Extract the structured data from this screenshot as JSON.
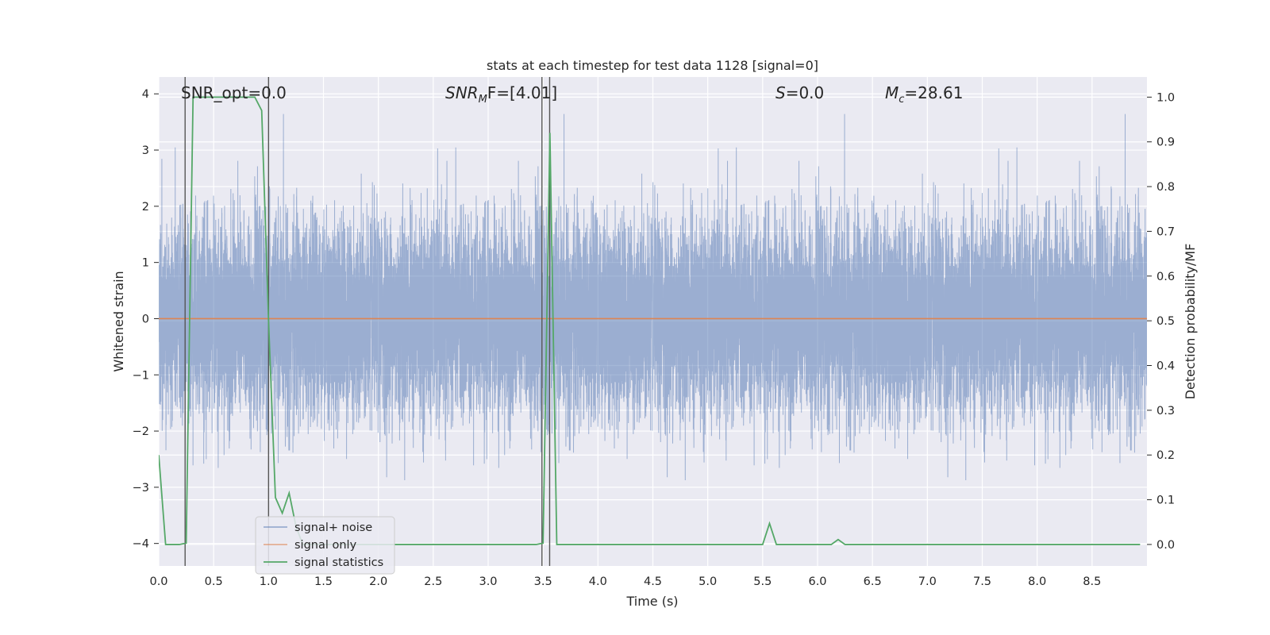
{
  "chart_data": {
    "type": "line",
    "title": "stats at each timestep for test data 1128 [signal=0]",
    "xlabel": "Time (s)",
    "ylabel": "Whitened strain",
    "ylabel_right": "Detection probability/MF",
    "xlim": [
      0,
      9.0
    ],
    "ylim": [
      -4.4,
      4.3
    ],
    "ylim_right": [
      -0.048,
      1.045
    ],
    "x_ticks": [
      0.0,
      0.5,
      1.0,
      1.5,
      2.0,
      2.5,
      3.0,
      3.5,
      4.0,
      4.5,
      5.0,
      5.5,
      6.0,
      6.5,
      7.0,
      7.5,
      8.0,
      8.5
    ],
    "x_tick_labels": [
      "0.0",
      "0.5",
      "1.0",
      "1.5",
      "2.0",
      "2.5",
      "3.0",
      "3.5",
      "4.0",
      "4.5",
      "5.0",
      "5.5",
      "6.0",
      "6.5",
      "7.0",
      "7.5",
      "8.0",
      "8.5"
    ],
    "y_ticks": [
      -4,
      -3,
      -2,
      -1,
      0,
      1,
      2,
      3,
      4
    ],
    "y_tick_labels": [
      "−4",
      "−3",
      "−2",
      "−1",
      "0",
      "1",
      "2",
      "3",
      "4"
    ],
    "y_right_ticks": [
      0.0,
      0.1,
      0.2,
      0.3,
      0.4,
      0.5,
      0.6,
      0.7,
      0.8,
      0.9,
      1.0
    ],
    "y_right_tick_labels": [
      "0.0",
      "0.1",
      "0.2",
      "0.3",
      "0.4",
      "0.5",
      "0.6",
      "0.7",
      "0.8",
      "0.9",
      "1.0"
    ],
    "grid": true,
    "legend_position": "lower-left",
    "annotations": {
      "snr_opt": "SNR_opt=0.0",
      "snr_mf_main": "SNR",
      "snr_mf_sub": "M",
      "snr_mf_rest": "F=[4.01]",
      "s_main": "S",
      "s_rest": "=0.0",
      "mc_main": "M",
      "mc_sub": "c",
      "mc_rest": "=28.61"
    },
    "series": [
      {
        "name": "signal+ noise",
        "color": "#4c72b0",
        "kind": "noise",
        "sample_rate": 2048,
        "amplitude_sigma": 0.85
      },
      {
        "name": "signal only",
        "color": "#dd8452",
        "x": [
          0.0,
          9.0
        ],
        "y": [
          0.0,
          0.0
        ]
      },
      {
        "name": "signal statistics",
        "color": "#55a868",
        "axis": "right",
        "x": [
          0.0,
          0.0625,
          0.125,
          0.1875,
          0.25,
          0.3125,
          0.375,
          0.4375,
          0.5,
          0.5625,
          0.625,
          0.6875,
          0.75,
          0.8125,
          0.875,
          0.9375,
          1.0,
          1.0625,
          1.125,
          1.1875,
          1.25,
          1.3125,
          1.375,
          1.4375,
          1.5,
          1.5625,
          1.625,
          1.6875,
          1.75,
          1.8125,
          1.875,
          1.9375,
          2.0,
          2.0625,
          2.125,
          2.1875,
          2.25,
          2.3125,
          2.375,
          2.4375,
          2.5,
          2.5625,
          2.625,
          2.6875,
          2.75,
          2.8125,
          2.875,
          2.9375,
          3.0,
          3.0625,
          3.125,
          3.1875,
          3.25,
          3.3125,
          3.375,
          3.4375,
          3.5,
          3.5625,
          3.625,
          3.6875,
          3.75,
          3.8125,
          3.875,
          3.9375,
          4.0,
          4.0625,
          4.125,
          4.1875,
          4.25,
          4.3125,
          4.375,
          4.4375,
          4.5,
          4.5625,
          4.625,
          4.6875,
          4.75,
          4.8125,
          4.875,
          4.9375,
          5.0,
          5.0625,
          5.125,
          5.1875,
          5.25,
          5.3125,
          5.375,
          5.4375,
          5.5,
          5.5625,
          5.625,
          5.6875,
          5.75,
          5.8125,
          5.875,
          5.9375,
          6.0,
          6.0625,
          6.125,
          6.1875,
          6.25,
          6.3125,
          6.375,
          6.4375,
          6.5,
          6.5625,
          6.625,
          6.6875,
          6.75,
          6.8125,
          6.875,
          6.9375,
          7.0,
          7.0625,
          7.125,
          7.1875,
          7.25,
          7.3125,
          7.375,
          7.4375,
          7.5,
          7.5625,
          7.625,
          7.6875,
          7.75,
          7.8125,
          7.875,
          7.9375,
          8.0,
          8.0625,
          8.125,
          8.1875,
          8.25,
          8.3125,
          8.375,
          8.4375,
          8.5,
          8.5625,
          8.625,
          8.6875,
          8.75,
          8.8125,
          8.875,
          8.9375
        ],
        "y": [
          0.2,
          0.0,
          0.0,
          0.0,
          0.003,
          1.0,
          1.0,
          1.0,
          1.0,
          1.0,
          1.0,
          1.0,
          1.0,
          1.0,
          1.0,
          0.97,
          0.5,
          0.105,
          0.07,
          0.115,
          0.04,
          0.0,
          0.0,
          0.0,
          0.0,
          0.0,
          0.0,
          0.0,
          0.0,
          0.0,
          0.0,
          0.0,
          0.0,
          0.0,
          0.0,
          0.0,
          0.0,
          0.0,
          0.0,
          0.0,
          0.0,
          0.0,
          0.0,
          0.0,
          0.0,
          0.0,
          0.0,
          0.0,
          0.0,
          0.0,
          0.0,
          0.0,
          0.0,
          0.0,
          0.0,
          0.0,
          0.003,
          0.92,
          0.0,
          0.0,
          0.0,
          0.0,
          0.0,
          0.0,
          0.0,
          0.0,
          0.0,
          0.0,
          0.0,
          0.0,
          0.0,
          0.0,
          0.0,
          0.0,
          0.0,
          0.0,
          0.0,
          0.0,
          0.0,
          0.0,
          0.0,
          0.0,
          0.0,
          0.0,
          0.0,
          0.0,
          0.0,
          0.0,
          0.0,
          0.047,
          0.0,
          0.0,
          0.0,
          0.0,
          0.0,
          0.0,
          0.0,
          0.0,
          0.0,
          0.011,
          0.0,
          0.0,
          0.0,
          0.0,
          0.0,
          0.0,
          0.0,
          0.0,
          0.0,
          0.0,
          0.0,
          0.0,
          0.0,
          0.0,
          0.0,
          0.0,
          0.0,
          0.0,
          0.0,
          0.0,
          0.0,
          0.0,
          0.0,
          0.0,
          0.0,
          0.0,
          0.0,
          0.0,
          0.0,
          0.0,
          0.0,
          0.0,
          0.0,
          0.0,
          0.0,
          0.0,
          0.0,
          0.0,
          0.0,
          0.0,
          0.0,
          0.0,
          0.0,
          0.0
        ]
      }
    ],
    "vertical_lines": {
      "color": "#555555",
      "x": [
        0.24,
        1.0,
        3.49,
        3.56
      ]
    },
    "colors": {
      "axes_background": "#eaeaf2",
      "grid": "#ffffff"
    }
  }
}
